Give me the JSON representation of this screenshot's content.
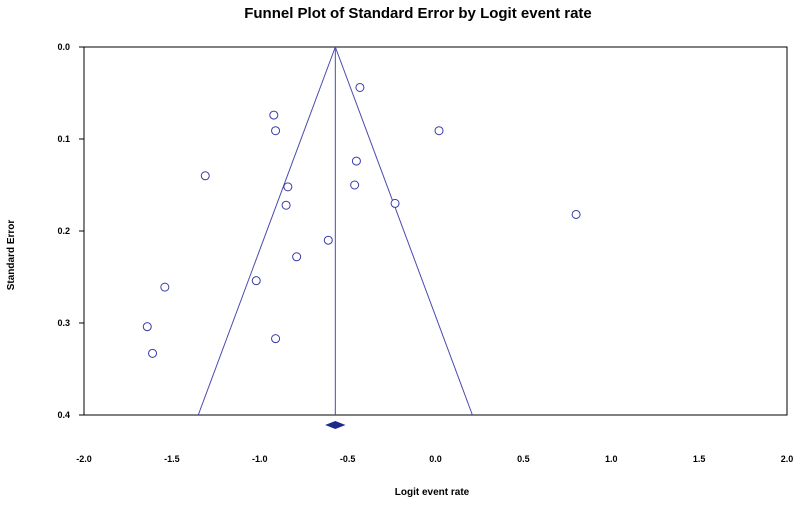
{
  "chart_data": {
    "type": "scatter",
    "title": "Funnel Plot of Standard Error by Logit event rate",
    "xlabel": "Logit event rate",
    "ylabel": "Standard Error",
    "xlim": [
      -2.0,
      2.0
    ],
    "ylim": [
      0.0,
      0.4
    ],
    "y_inverted": true,
    "x_ticks": [
      "-2.0",
      "-1.5",
      "-1.0",
      "-0.5",
      "0.0",
      "0.5",
      "1.0",
      "1.5",
      "2.0"
    ],
    "y_ticks": [
      "0.0",
      "0.1",
      "0.2",
      "0.3",
      "0.4"
    ],
    "pooled_estimate": -0.57,
    "funnel_apex": [
      -0.57,
      0.0
    ],
    "funnel_base": [
      [
        -1.35,
        0.4
      ],
      [
        0.21,
        0.4
      ]
    ],
    "summary_diamond": {
      "center": -0.57,
      "lower": -0.62,
      "upper": -0.52
    },
    "points": [
      {
        "x": -0.43,
        "y": 0.044
      },
      {
        "x": -0.92,
        "y": 0.074
      },
      {
        "x": -0.91,
        "y": 0.091
      },
      {
        "x": 0.02,
        "y": 0.091
      },
      {
        "x": -0.45,
        "y": 0.124
      },
      {
        "x": -1.31,
        "y": 0.14
      },
      {
        "x": -0.84,
        "y": 0.152
      },
      {
        "x": -0.46,
        "y": 0.15
      },
      {
        "x": -0.85,
        "y": 0.172
      },
      {
        "x": -0.23,
        "y": 0.17
      },
      {
        "x": 0.8,
        "y": 0.182
      },
      {
        "x": -0.61,
        "y": 0.21
      },
      {
        "x": -0.79,
        "y": 0.228
      },
      {
        "x": -1.02,
        "y": 0.254
      },
      {
        "x": -1.54,
        "y": 0.261
      },
      {
        "x": -1.64,
        "y": 0.304
      },
      {
        "x": -0.91,
        "y": 0.317
      },
      {
        "x": -1.61,
        "y": 0.333
      }
    ],
    "colors": {
      "line": "#4a4ab0",
      "marker": "#3b3ba8",
      "diamond": "#1f2a8c",
      "frame": "#000000"
    }
  }
}
